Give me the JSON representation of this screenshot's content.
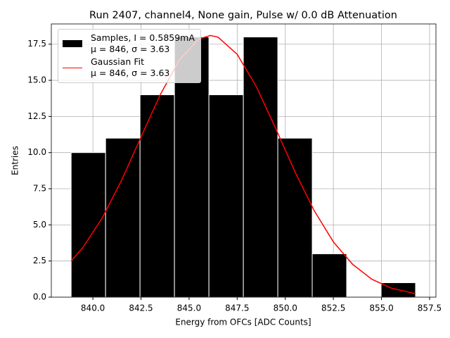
{
  "chart_data": {
    "type": "histogram",
    "title": "Run 2407, channel4, None gain, Pulse w/ 0.0 dB Attenuation",
    "xlabel": "Energy from OFCs [ADC Counts]",
    "ylabel": "Entries",
    "bins": [
      838.87,
      840.66,
      842.45,
      844.24,
      846.03,
      847.82,
      849.61,
      851.4,
      853.19,
      854.98,
      856.77
    ],
    "series": [
      {
        "name": "Samples, I = 0.5859mA\nμ = 846, σ = 3.63",
        "color": "#000000",
        "values": [
          10,
          11,
          14,
          18,
          14,
          18,
          11,
          3,
          0,
          1
        ]
      },
      {
        "name": "Gaussian Fit\nμ = 846, σ = 3.63",
        "color": "#ff0000",
        "type": "line",
        "x": [
          838.87,
          839.5,
          840.5,
          841.5,
          842.5,
          843.5,
          844.5,
          845.5,
          846.1,
          846.5,
          847.5,
          848.5,
          849.5,
          850.5,
          851.5,
          852.5,
          853.5,
          854.5,
          855.5,
          856.77
        ],
        "values": [
          2.49,
          3.47,
          5.51,
          8.11,
          11.07,
          14.0,
          16.42,
          17.85,
          18.1,
          17.99,
          16.8,
          14.55,
          11.67,
          8.68,
          5.99,
          3.82,
          2.27,
          1.24,
          0.63,
          0.24
        ]
      }
    ],
    "xlim": [
      837.84,
      857.83
    ],
    "ylim": [
      0,
      18.9
    ],
    "xticks": [
      {
        "value": 840,
        "label": "840.0"
      },
      {
        "value": 842.5,
        "label": "842.5"
      },
      {
        "value": 845,
        "label": "845.0"
      },
      {
        "value": 847.5,
        "label": "847.5"
      },
      {
        "value": 850,
        "label": "850.0"
      },
      {
        "value": 852.5,
        "label": "852.5"
      },
      {
        "value": 855,
        "label": "855.0"
      },
      {
        "value": 857.5,
        "label": "857.5"
      }
    ],
    "yticks": [
      {
        "value": 0,
        "label": "0.0"
      },
      {
        "value": 2.5,
        "label": "2.5"
      },
      {
        "value": 5,
        "label": "5.0"
      },
      {
        "value": 7.5,
        "label": "7.5"
      },
      {
        "value": 10,
        "label": "10.0"
      },
      {
        "value": 12.5,
        "label": "12.5"
      },
      {
        "value": 15,
        "label": "15.0"
      },
      {
        "value": 17.5,
        "label": "17.5"
      }
    ],
    "grid": true,
    "legend": "upper left"
  }
}
